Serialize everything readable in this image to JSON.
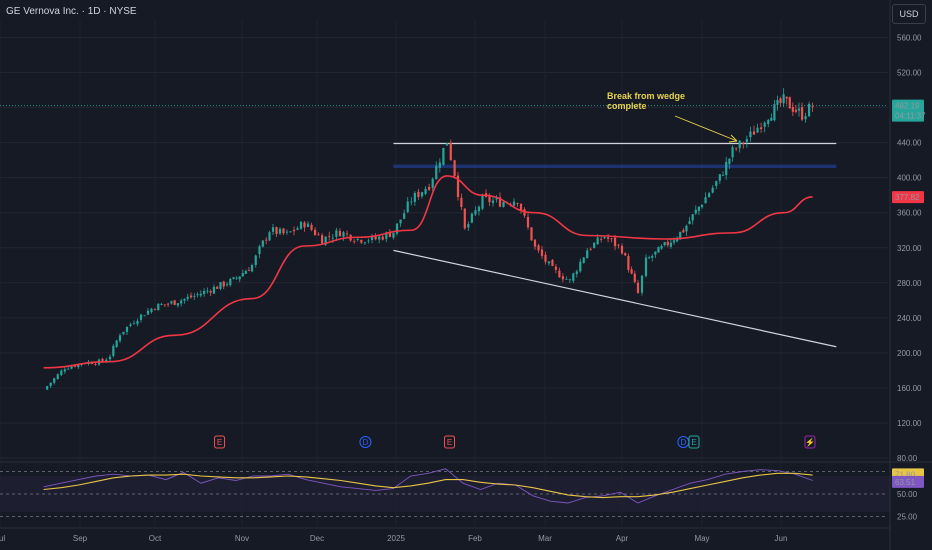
{
  "header": {
    "symbol": "GE Vernova Inc. · 1D · NYSE"
  },
  "currency": "USD",
  "colors": {
    "up": "#26a69a",
    "down": "#ef5350",
    "ma": "#f23645",
    "rsi": "#7e57c2",
    "rsi_ma": "#e8c547",
    "line": "#d1d4dc",
    "annotation": "#e8d44d"
  },
  "chart_data": [
    {
      "type": "candlestick",
      "title": "GE Vernova Inc. · 1D · NYSE",
      "x": [
        "Sep",
        "Oct",
        "Nov",
        "Dec",
        "2025",
        "Feb",
        "Mar",
        "Apr",
        "May",
        "Jun",
        "Jul"
      ],
      "y_ticks": [
        "560.00",
        "520.00",
        "480.00",
        "440.00",
        "400.00",
        "360.00",
        "320.00",
        "280.00",
        "240.00",
        "200.00",
        "160.00",
        "120.00",
        "80.00"
      ],
      "ylim": [
        80,
        580
      ],
      "last_price": "482.19",
      "countdown": "04:11:37",
      "ma_value": "377.82",
      "ohlc_anchor_points": [
        {
          "date": "Aug 20",
          "close": 158
        },
        {
          "date": "Aug 27",
          "close": 183
        },
        {
          "date": "Sep 3",
          "close": 189
        },
        {
          "date": "Sep 10",
          "close": 190
        },
        {
          "date": "Sep 13",
          "close": 197
        },
        {
          "date": "Sep 17",
          "close": 222
        },
        {
          "date": "Sep 24",
          "close": 240
        },
        {
          "date": "Oct 1",
          "close": 253
        },
        {
          "date": "Oct 8",
          "close": 258
        },
        {
          "date": "Oct 15",
          "close": 265
        },
        {
          "date": "Oct 22",
          "close": 274
        },
        {
          "date": "Oct 29",
          "close": 283
        },
        {
          "date": "Nov 5",
          "close": 300
        },
        {
          "date": "Nov 8",
          "close": 318
        },
        {
          "date": "Nov 12",
          "close": 340
        },
        {
          "date": "Nov 19",
          "close": 335
        },
        {
          "date": "Nov 26",
          "close": 348
        },
        {
          "date": "Dec 3",
          "close": 330
        },
        {
          "date": "Dec 10",
          "close": 338
        },
        {
          "date": "Dec 17",
          "close": 330
        },
        {
          "date": "Dec 24",
          "close": 330
        },
        {
          "date": "Dec 31",
          "close": 338
        },
        {
          "date": "Jan 7",
          "close": 375
        },
        {
          "date": "Jan 14",
          "close": 392
        },
        {
          "date": "Jan 21",
          "close": 442
        },
        {
          "date": "Jan 24",
          "close": 405
        },
        {
          "date": "Jan 28",
          "close": 340
        },
        {
          "date": "Feb 4",
          "close": 375
        },
        {
          "date": "Feb 11",
          "close": 372
        },
        {
          "date": "Feb 18",
          "close": 375
        },
        {
          "date": "Feb 25",
          "close": 320
        },
        {
          "date": "Mar 4",
          "close": 295
        },
        {
          "date": "Mar 11",
          "close": 282
        },
        {
          "date": "Mar 18",
          "close": 318
        },
        {
          "date": "Mar 25",
          "close": 333
        },
        {
          "date": "Apr 1",
          "close": 318
        },
        {
          "date": "Apr 7",
          "close": 268
        },
        {
          "date": "Apr 10",
          "close": 305
        },
        {
          "date": "Apr 17",
          "close": 322
        },
        {
          "date": "Apr 24",
          "close": 340
        },
        {
          "date": "May 1",
          "close": 372
        },
        {
          "date": "May 8",
          "close": 400
        },
        {
          "date": "May 13",
          "close": 430
        },
        {
          "date": "May 20",
          "close": 448
        },
        {
          "date": "May 27",
          "close": 472
        },
        {
          "date": "Jun 2",
          "close": 488
        },
        {
          "date": "Jun 9",
          "close": 472
        },
        {
          "date": "Jun 13",
          "close": 482
        }
      ],
      "moving_average_points": [
        {
          "date": "Aug 20",
          "value": 183
        },
        {
          "date": "Sep 13",
          "value": 190
        },
        {
          "date": "Oct 8",
          "value": 220
        },
        {
          "date": "Nov 5",
          "value": 262
        },
        {
          "date": "Nov 26",
          "value": 322
        },
        {
          "date": "Dec 17",
          "value": 332
        },
        {
          "date": "Jan 7",
          "value": 340
        },
        {
          "date": "Jan 21",
          "value": 402
        },
        {
          "date": "Feb 4",
          "value": 380
        },
        {
          "date": "Feb 25",
          "value": 360
        },
        {
          "date": "Mar 18",
          "value": 334
        },
        {
          "date": "Apr 17",
          "value": 330
        },
        {
          "date": "May 13",
          "value": 337
        },
        {
          "date": "Jun 2",
          "value": 360
        },
        {
          "date": "Jun 13",
          "value": 378
        }
      ],
      "trendlines": [
        {
          "name": "resistance",
          "from": {
            "date": "Dec 31",
            "value": 439
          },
          "to": {
            "date": "Jun 22",
            "value": 439
          }
        },
        {
          "name": "support",
          "from": {
            "date": "Dec 31",
            "value": 317
          },
          "to": {
            "date": "Jun 22",
            "value": 207
          }
        }
      ],
      "zone": {
        "from": "Dec 31",
        "to": "Jun 22",
        "low": 411,
        "high": 415
      },
      "annotation": {
        "text_line1": "Break from wedge",
        "text_line2": "complete"
      },
      "event_markers": [
        {
          "date": "Oct 24",
          "label": "E",
          "color": "#ef5350"
        },
        {
          "date": "Dec 20",
          "label": "D",
          "color": "#2962ff"
        },
        {
          "date": "Jan 22",
          "label": "E",
          "color": "#ef5350"
        },
        {
          "date": "Apr 24",
          "label": "D",
          "color": "#2962ff"
        },
        {
          "date": "Apr 28",
          "label": "E",
          "color": "#26a69a"
        },
        {
          "date": "Jun 12",
          "label": "⚡",
          "color": "#9c27b0"
        }
      ]
    },
    {
      "type": "line",
      "title": "RSI",
      "y_ticks": [
        "75.00",
        "50.00",
        "25.00"
      ],
      "ylim": [
        20,
        80
      ],
      "rsi_value": "63.51",
      "rsi_ma_value": "71.80",
      "series": [
        {
          "values": [
            58,
            62,
            66,
            70,
            72,
            70,
            71,
            66,
            74,
            62,
            68,
            65,
            70,
            70,
            72,
            66,
            62,
            58,
            56,
            54,
            56,
            70,
            73,
            78,
            62,
            55,
            62,
            60,
            48,
            42,
            40,
            46,
            48,
            52,
            40,
            48,
            55,
            62,
            66,
            72,
            75,
            77,
            76,
            72,
            65
          ]
        },
        {
          "values": [
            55,
            57,
            60,
            64,
            68,
            70,
            71,
            71,
            72,
            70,
            69,
            68,
            68,
            69,
            70,
            69,
            67,
            65,
            62,
            59,
            57,
            59,
            62,
            66,
            66,
            63,
            61,
            60,
            57,
            53,
            49,
            47,
            46,
            47,
            47,
            49,
            52,
            56,
            60,
            64,
            68,
            71,
            73,
            73,
            71
          ]
        }
      ]
    }
  ]
}
